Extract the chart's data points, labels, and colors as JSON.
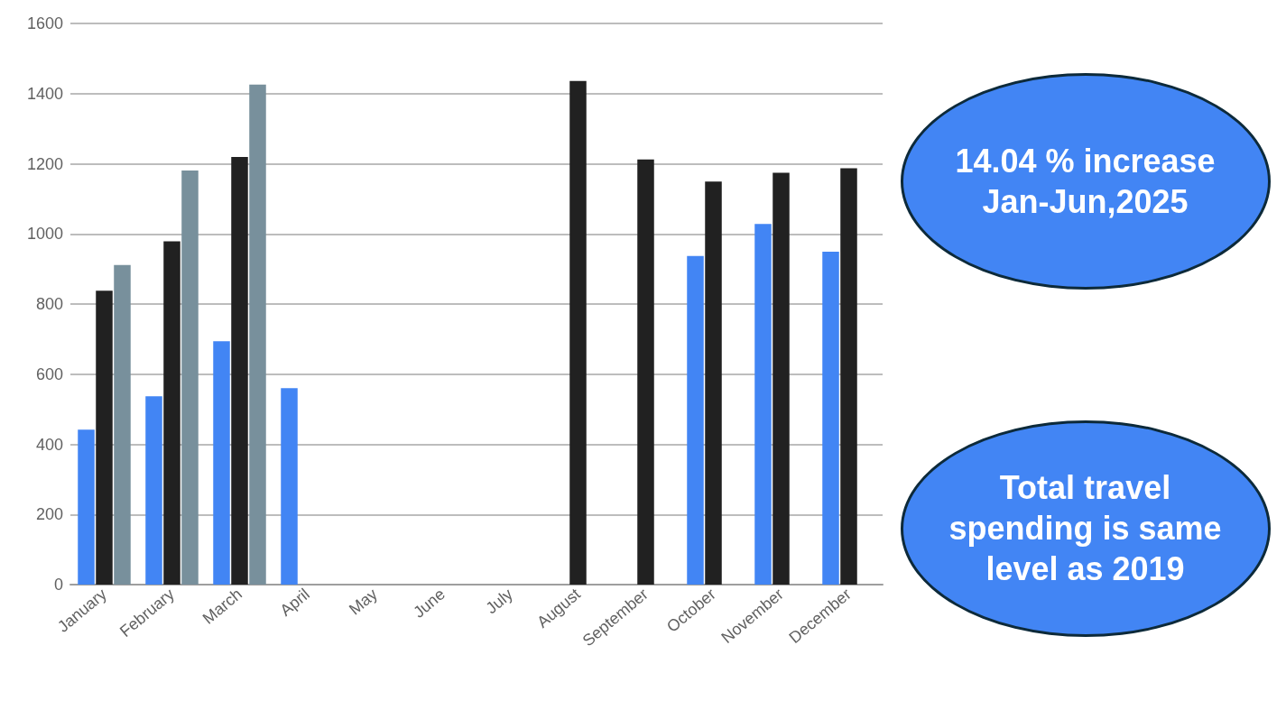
{
  "chart_data": {
    "type": "bar",
    "categories": [
      "January",
      "February",
      "March",
      "April",
      "May",
      "June",
      "July",
      "August",
      "September",
      "October",
      "November",
      "December"
    ],
    "series": [
      {
        "color": "#4285f4",
        "values": [
          442,
          537,
          694,
          560,
          null,
          null,
          null,
          null,
          null,
          937,
          1028,
          949
        ]
      },
      {
        "color": "#212121",
        "values": [
          838,
          979,
          1219,
          null,
          null,
          null,
          null,
          1436,
          1212,
          1149,
          1174,
          1187
        ]
      },
      {
        "color": "#78909c",
        "values": [
          911,
          1181,
          1426,
          null,
          null,
          null,
          null,
          null,
          null,
          null,
          null,
          null
        ]
      }
    ],
    "ylim": [
      0,
      1600
    ],
    "yticks": [
      0,
      200,
      400,
      600,
      800,
      1000,
      1200,
      1400,
      1600
    ],
    "grid": "y",
    "annotations": [
      "14.04 % increase\nJan-Jun,2025",
      "Total travel\nspending is same\nlevel as 2019"
    ]
  }
}
